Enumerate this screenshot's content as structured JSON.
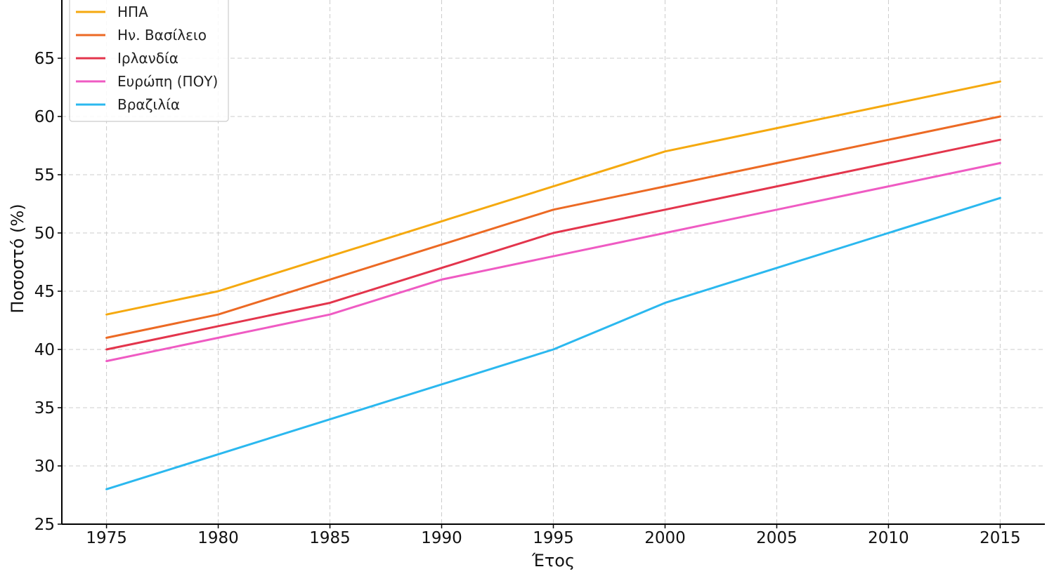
{
  "chart_data": {
    "type": "line",
    "x": [
      1975,
      1980,
      1985,
      1990,
      1995,
      2000,
      2005,
      2010,
      2015
    ],
    "xlabel": "Έτος",
    "ylabel": "Ποσοστό (%)",
    "xlim": [
      1973,
      2017
    ],
    "ylim": [
      25,
      70
    ],
    "xticks": [
      1975,
      1980,
      1985,
      1990,
      1995,
      2000,
      2005,
      2010,
      2015
    ],
    "yticks": [
      25,
      30,
      35,
      40,
      45,
      50,
      55,
      60,
      65
    ],
    "grid": true,
    "legend_position": "top-left",
    "series": [
      {
        "name": "ΗΠΑ",
        "color": "#f5a90f",
        "values": [
          43,
          45,
          48,
          51,
          54,
          57,
          59,
          61,
          63
        ]
      },
      {
        "name": "Ην. Βασίλειο",
        "color": "#ec6a24",
        "values": [
          41,
          43,
          46,
          49,
          52,
          54,
          56,
          58,
          60
        ]
      },
      {
        "name": "Ιρλανδία",
        "color": "#e3354c",
        "values": [
          40,
          42,
          44,
          47,
          50,
          52,
          54,
          56,
          58
        ]
      },
      {
        "name": "Ευρώπη (ΠΟΥ)",
        "color": "#ef5bc3",
        "values": [
          39,
          41,
          43,
          46,
          48,
          50,
          52,
          54,
          56
        ]
      },
      {
        "name": "Βραζιλία",
        "color": "#2bb8ef",
        "values": [
          28,
          31,
          34,
          37,
          40,
          44,
          47,
          50,
          53
        ]
      }
    ]
  }
}
